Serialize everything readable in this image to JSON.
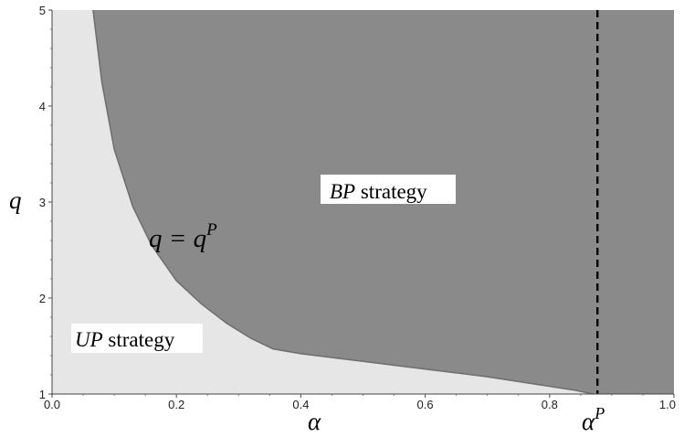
{
  "chart_data": {
    "type": "area",
    "xlabel": "α",
    "ylabel": "q",
    "xlim": [
      0.0,
      1.0
    ],
    "ylim": [
      1,
      5
    ],
    "x_ticks": [
      "0.0",
      "0.2",
      "0.4",
      "0.6",
      "0.8",
      "1.0"
    ],
    "y_ticks": [
      "1",
      "2",
      "3",
      "4",
      "5"
    ],
    "boundary_curve": {
      "label": "q = q",
      "label_sup": "P",
      "x": [
        0.066,
        0.08,
        0.1,
        0.13,
        0.16,
        0.2,
        0.24,
        0.28,
        0.32,
        0.355,
        0.4,
        0.5,
        0.6,
        0.7,
        0.78,
        0.84,
        0.87
      ],
      "y": [
        5.0,
        4.25,
        3.55,
        2.95,
        2.55,
        2.18,
        1.94,
        1.74,
        1.58,
        1.47,
        1.42,
        1.34,
        1.26,
        1.18,
        1.1,
        1.04,
        1.0
      ]
    },
    "vertical_line": {
      "x": 0.877,
      "label": "α",
      "label_sup": "P",
      "style": "dashed"
    },
    "regions": [
      {
        "name_italic": "BP",
        "name_rest": " strategy",
        "color": "#8a8a8a",
        "position": "above curve"
      },
      {
        "name_italic": "UP",
        "name_rest": " strategy",
        "color": "#e6e6e6",
        "position": "below curve"
      }
    ],
    "colors": {
      "region_bp": "#8a8a8a",
      "region_up": "#e6e6e6",
      "boundary": "#6e6e6e",
      "dashed_line": "#000000"
    },
    "grid": false
  }
}
